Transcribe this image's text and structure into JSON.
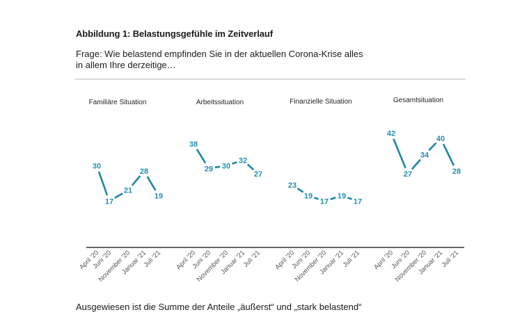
{
  "header": {
    "title": "Abbildung 1: Belastungsgefühle im Zeitverlauf",
    "question": "Frage: Wie belastend empfinden Sie in der aktuellen Corona-Krise alles in allem Ihre derzeitige…"
  },
  "footer": {
    "note": "Ausgewiesen ist die Summe der Anteile „äußerst“ und „stark belastend“"
  },
  "colors": {
    "series": "#1a86a8",
    "label": "#1f8fb0",
    "axis": "#333333",
    "divider": "#bfbfbf"
  },
  "chart_data": [
    {
      "type": "line",
      "title": "Familiäre Situation",
      "categories": [
        "April '20",
        "Juni '20",
        "November '20",
        "Januar '21",
        "Juli '21"
      ],
      "values": [
        30,
        17,
        21,
        28,
        19
      ],
      "unit": "%",
      "data_labels": true
    },
    {
      "type": "line",
      "title": "Arbeitssituation",
      "categories": [
        "April '20",
        "Juni '20",
        "November '20",
        "Januar '21",
        "Juli '21"
      ],
      "values": [
        38,
        29,
        30,
        32,
        27
      ],
      "unit": "%",
      "data_labels": true
    },
    {
      "type": "line",
      "title": "Finanzielle Situation",
      "categories": [
        "April '20",
        "Juni '20",
        "November '20",
        "Januar '21",
        "Juli '21"
      ],
      "values": [
        23,
        19,
        17,
        19,
        17
      ],
      "unit": "%",
      "data_labels": true
    },
    {
      "type": "line",
      "title": "Gesamtsituation",
      "categories": [
        "April '20",
        "Juni '20",
        "November '20",
        "Januar '21",
        "Juli '21"
      ],
      "values": [
        42,
        27,
        34,
        40,
        28
      ],
      "unit": "%",
      "data_labels": true
    }
  ]
}
